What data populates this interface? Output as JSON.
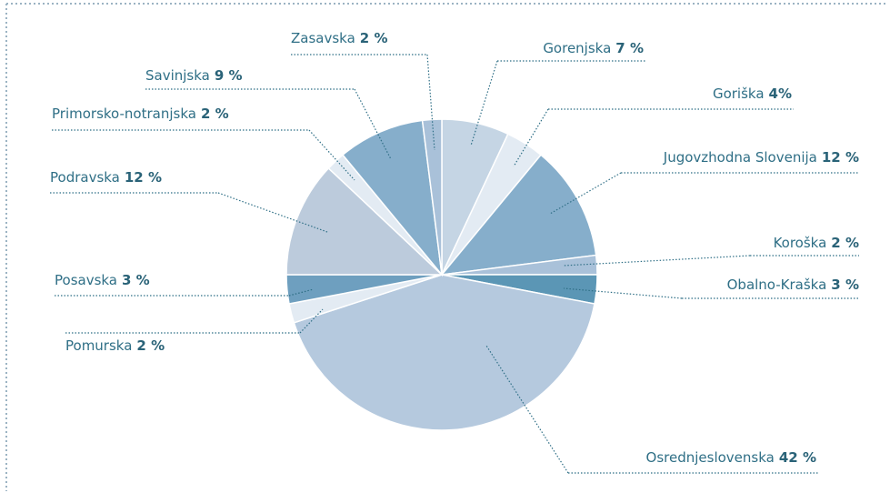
{
  "chart_data": {
    "type": "pie",
    "categories": [
      "Gorenjska",
      "Goriška",
      "Jugovzhodna Slovenija",
      "Koroška",
      "Obalno-Kraška",
      "Osrednjeslovenska",
      "Pomurska",
      "Posavska",
      "Podravska",
      "Primorsko-notranjska",
      "Savinjska",
      "Zasavska"
    ],
    "values": [
      7,
      4,
      12,
      2,
      3,
      42,
      2,
      3,
      12,
      2,
      9,
      2
    ],
    "value_labels": [
      "7 %",
      "4%",
      "12 %",
      "2 %",
      "3 %",
      "42 %",
      "2 %",
      "3 %",
      "12 %",
      "2 %",
      "9 %",
      "2 %"
    ],
    "colors": [
      "#c5d5e4",
      "#e3ebf3",
      "#86aecb",
      "#a9c1d9",
      "#5b96b5",
      "#b5c9de",
      "#e3ebf3",
      "#6e9fbf",
      "#bccbdc",
      "#e3ebf3",
      "#86aecb",
      "#a9c1d9"
    ]
  }
}
